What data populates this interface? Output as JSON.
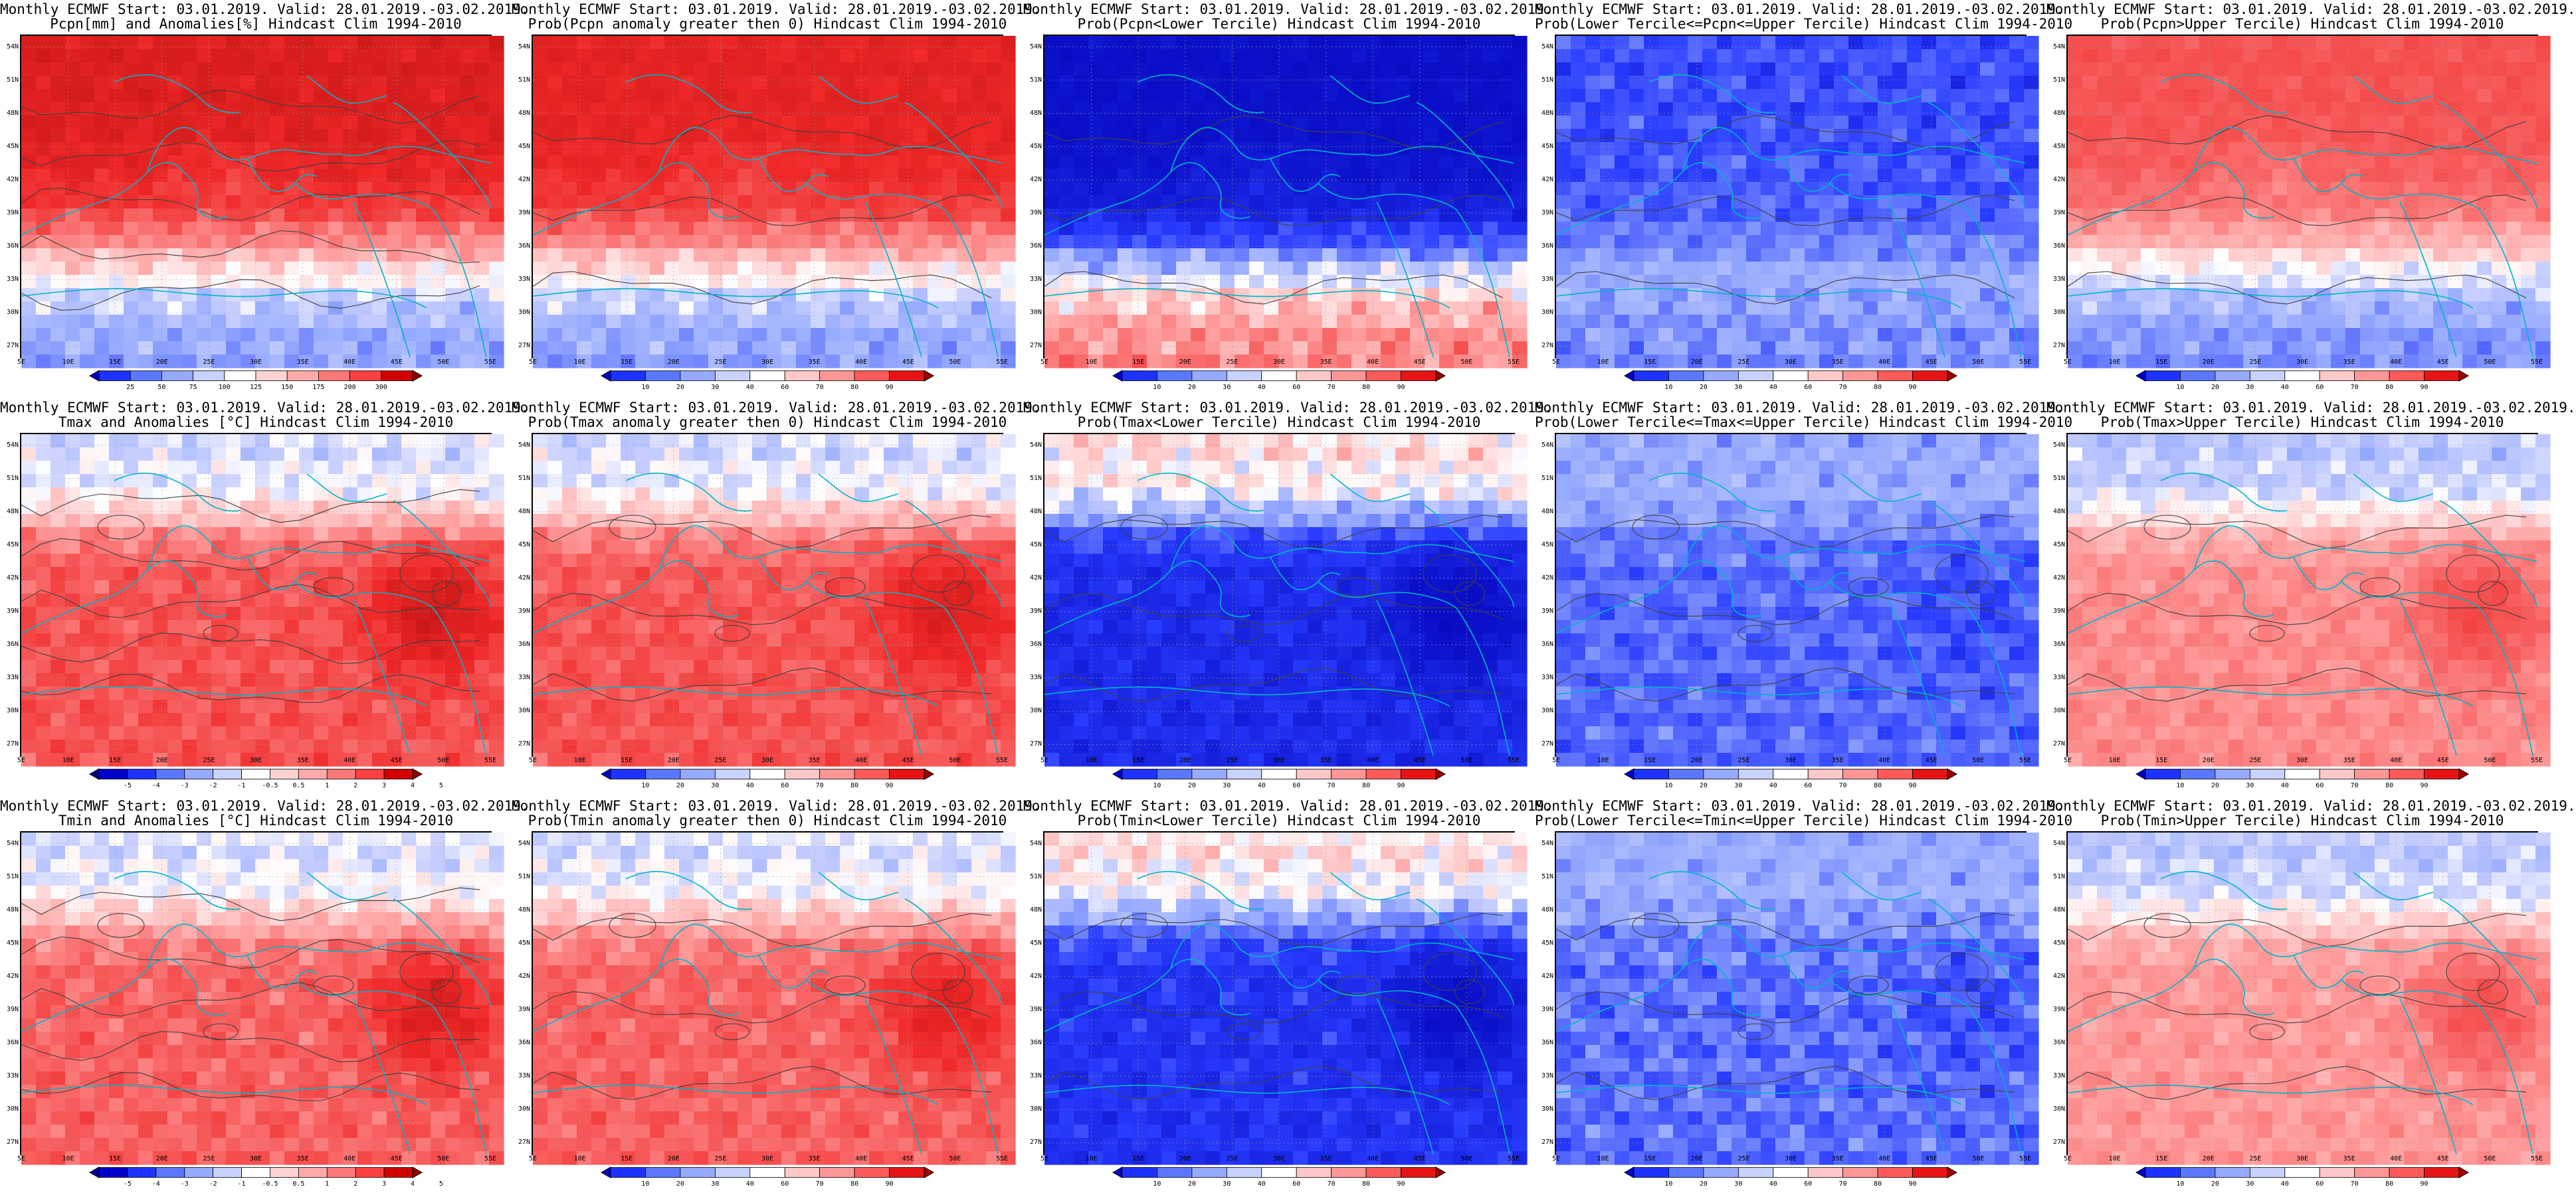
{
  "map_data": {
    "lat_labels": [
      "54N",
      "51N",
      "48N",
      "45N",
      "42N",
      "39N",
      "36N",
      "33N",
      "30N",
      "27N"
    ],
    "lon_labels": [
      "5E",
      "10E",
      "15E",
      "20E",
      "25E",
      "30E",
      "35E",
      "40E",
      "45E",
      "50E",
      "55E"
    ],
    "panels": [
      {
        "title1": "Monthly ECMWF Start: 03.01.2019. Valid: 28.01.2019.-03.02.2019.",
        "title2": "Pcpn[mm] and Anomalies[%] Hindcast Clim 1994-2010",
        "scale": "pcpn",
        "style": "anomaly",
        "field": "precip"
      },
      {
        "title1": "Monthly ECMWF Start: 03.01.2019. Valid: 28.01.2019.-03.02.2019.",
        "title2": "Prob(Pcpn anomaly greater then 0) Hindcast Clim 1994-2010",
        "scale": "prob",
        "style": "probpos",
        "field": "precip"
      },
      {
        "title1": "Monthly ECMWF Start: 03.01.2019. Valid: 28.01.2019.-03.02.2019.",
        "title2": "Prob(Pcpn<Lower Tercile) Hindcast Clim 1994-2010",
        "scale": "prob",
        "style": "lower",
        "field": "precip"
      },
      {
        "title1": "Monthly ECMWF Start: 03.01.2019. Valid: 28.01.2019.-03.02.2019.",
        "title2": "Prob(Lower Tercile<=Pcpn<=Upper Tercile) Hindcast Clim 1994-2010",
        "scale": "prob",
        "style": "middle",
        "field": "precip"
      },
      {
        "title1": "Monthly ECMWF Start: 03.01.2019. Valid: 28.01.2019.-03.02.2019.",
        "title2": "Prob(Pcpn>Upper Tercile) Hindcast Clim 1994-2010",
        "scale": "prob",
        "style": "upper",
        "field": "precip"
      },
      {
        "title1": "Monthly ECMWF Start: 03.01.2019. Valid: 28.01.2019.-03.02.2019.",
        "title2": "Tmax and Anomalies [°C] Hindcast Clim 1994-2010",
        "scale": "temp",
        "style": "anomaly",
        "field": "tmax"
      },
      {
        "title1": "Monthly ECMWF Start: 03.01.2019. Valid: 28.01.2019.-03.02.2019.",
        "title2": "Prob(Tmax anomaly greater then 0) Hindcast Clim 1994-2010",
        "scale": "prob",
        "style": "probpos",
        "field": "tmax"
      },
      {
        "title1": "Monthly ECMWF Start: 03.01.2019. Valid: 28.01.2019.-03.02.2019.",
        "title2": "Prob(Tmax<Lower Tercile) Hindcast Clim 1994-2010",
        "scale": "prob",
        "style": "lower",
        "field": "tmax"
      },
      {
        "title1": "Monthly ECMWF Start: 03.01.2019. Valid: 28.01.2019.-03.02.2019.",
        "title2": "Prob(Lower Tercile<=Tmax<=Upper Tercile) Hindcast Clim 1994-2010",
        "scale": "prob",
        "style": "middle",
        "field": "tmax"
      },
      {
        "title1": "Monthly ECMWF Start: 03.01.2019. Valid: 28.01.2019.-03.02.2019.",
        "title2": "Prob(Tmax>Upper Tercile) Hindcast Clim 1994-2010",
        "scale": "prob",
        "style": "upper",
        "field": "tmax"
      },
      {
        "title1": "Monthly ECMWF Start: 03.01.2019. Valid: 28.01.2019.-03.02.2019.",
        "title2": "Tmin and Anomalies [°C] Hindcast Clim 1994-2010",
        "scale": "temp",
        "style": "anomaly",
        "field": "tmin"
      },
      {
        "title1": "Monthly ECMWF Start: 03.01.2019. Valid: 28.01.2019.-03.02.2019.",
        "title2": "Prob(Tmin anomaly greater then 0) Hindcast Clim 1994-2010",
        "scale": "prob",
        "style": "probpos",
        "field": "tmin"
      },
      {
        "title1": "Monthly ECMWF Start: 03.01.2019. Valid: 28.01.2019.-03.02.2019.",
        "title2": "Prob(Tmin<Lower Tercile) Hindcast Clim 1994-2010",
        "scale": "prob",
        "style": "lower",
        "field": "tmin"
      },
      {
        "title1": "Monthly ECMWF Start: 03.01.2019. Valid: 28.01.2019.-03.02.2019.",
        "title2": "Prob(Lower Tercile<=Tmin<=Upper Tercile) Hindcast Clim 1994-2010",
        "scale": "prob",
        "style": "middle",
        "field": "tmin"
      },
      {
        "title1": "Monthly ECMWF Start: 03.01.2019. Valid: 28.01.2019.-03.02.2019.",
        "title2": "Prob(Tmin>Upper Tercile) Hindcast Clim 1994-2010",
        "scale": "prob",
        "style": "upper",
        "field": "tmin"
      }
    ]
  },
  "colorbars": {
    "prob": {
      "labels": [
        "10",
        "20",
        "30",
        "40",
        "60",
        "70",
        "80",
        "90"
      ],
      "colors": [
        "#0000c8",
        "#1e32ff",
        "#5a78ff",
        "#96aaff",
        "#c8d2ff",
        "#ffffff",
        "#ffc8c8",
        "#ff9696",
        "#ff5a5a",
        "#e61414",
        "#a00000"
      ]
    },
    "pcpn": {
      "labels": [
        "25",
        "50",
        "75",
        "100",
        "125",
        "150",
        "175",
        "200",
        "300"
      ],
      "colors": [
        "#0000c8",
        "#1e32ff",
        "#5a78ff",
        "#96aaff",
        "#c8d2ff",
        "#ffffff",
        "#ffd2d2",
        "#ffaaaa",
        "#ff7878",
        "#ff4040",
        "#d00000",
        "#900000"
      ]
    },
    "temp": {
      "labels": [
        "-5",
        "-4",
        "-3",
        "-2",
        "-1",
        "-0.5",
        "0.5",
        "1",
        "2",
        "3",
        "4",
        "5"
      ],
      "colors": [
        "#00008c",
        "#0000c8",
        "#1e32ff",
        "#5a78ff",
        "#96aaff",
        "#c8d2ff",
        "#ffffff",
        "#ffd2d2",
        "#ffaaaa",
        "#ff7878",
        "#ff4040",
        "#d00000",
        "#900000"
      ]
    }
  },
  "styles": {
    "map_border_color": "#000000",
    "coast_color": "#00b4c8",
    "contour_color": "#404040",
    "grid_color": "#9a9a9a"
  }
}
